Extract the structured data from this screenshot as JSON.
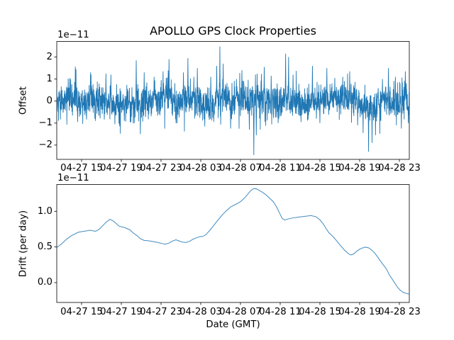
{
  "figure": {
    "title": "APOLLO GPS Clock Properties",
    "xlabel": "Date (GMT)",
    "background": "#ffffff",
    "line_color": "#1f77b4",
    "axes_color": "#000000"
  },
  "chart_data": [
    {
      "type": "line",
      "title": "APOLLO GPS Clock Properties",
      "ylabel": "Offset",
      "offset_text": "1e−11",
      "scale_factor": 1e-11,
      "xlim_hours": [
        12.5,
        48.0
      ],
      "ylim": [
        -2.7,
        2.73
      ],
      "grid": false,
      "legend": "none",
      "x_ticks": [
        {
          "hour": 15,
          "label": "04-27 15"
        },
        {
          "hour": 19,
          "label": "04-27 19"
        },
        {
          "hour": 23,
          "label": "04-27 23"
        },
        {
          "hour": 27,
          "label": "04-28 03"
        },
        {
          "hour": 31,
          "label": "04-28 07"
        },
        {
          "hour": 35,
          "label": "04-28 11"
        },
        {
          "hour": 39,
          "label": "04-28 15"
        },
        {
          "hour": 43,
          "label": "04-28 19"
        },
        {
          "hour": 47,
          "label": "04-28 23"
        }
      ],
      "y_ticks": [
        {
          "value": -2,
          "label": "−2"
        },
        {
          "value": -1,
          "label": "−1"
        },
        {
          "value": 0,
          "label": "0"
        },
        {
          "value": 1,
          "label": "1"
        },
        {
          "value": 2,
          "label": "2"
        }
      ],
      "series": [
        {
          "name": "offset",
          "kind": "noise",
          "n": 2130,
          "seed": 20210427,
          "base_std": 0.36,
          "tail_prob": 0.1,
          "tail_std": 0.45,
          "wander_sines": [
            [
              0.1,
              8.5,
              0.0
            ],
            [
              0.06,
              3.2,
              0.8
            ]
          ],
          "wander_bumps": [
            [
              44.1,
              0.8,
              -0.32
            ],
            [
              29.1,
              1.2,
              0.1
            ]
          ],
          "spikes": [
            [
              13.9,
              1.0
            ],
            [
              14.43,
              1.45
            ],
            [
              14.6,
              -0.95
            ],
            [
              15.9,
              1.3
            ],
            [
              16.4,
              -0.9
            ],
            [
              17.45,
              1.25
            ],
            [
              17.95,
              1.2
            ],
            [
              18.35,
              -1.05
            ],
            [
              19.3,
              -0.9
            ],
            [
              20.5,
              1.85
            ],
            [
              20.92,
              -1.5
            ],
            [
              21.3,
              1.3
            ],
            [
              22.3,
              1.1
            ],
            [
              23.2,
              1.35
            ],
            [
              23.8,
              1.9
            ],
            [
              24.5,
              -1.0
            ],
            [
              25.25,
              1.3
            ],
            [
              25.7,
              1.95
            ],
            [
              26.3,
              1.1
            ],
            [
              26.65,
              1.5
            ],
            [
              27.4,
              -1.15
            ],
            [
              28.0,
              1.1
            ],
            [
              28.6,
              1.6
            ],
            [
              28.92,
              2.48
            ],
            [
              29.25,
              1.7
            ],
            [
              30.0,
              -1.25
            ],
            [
              30.6,
              1.0
            ],
            [
              31.15,
              1.4
            ],
            [
              31.9,
              -1.3
            ],
            [
              32.35,
              -2.45
            ],
            [
              32.6,
              -1.55
            ],
            [
              33.4,
              1.55
            ],
            [
              34.1,
              1.15
            ],
            [
              34.8,
              -1.0
            ],
            [
              35.55,
              2.15
            ],
            [
              35.85,
              2.0
            ],
            [
              36.3,
              1.2
            ],
            [
              37.1,
              -0.95
            ],
            [
              38.25,
              1.6
            ],
            [
              39.0,
              -1.0
            ],
            [
              39.7,
              1.5
            ],
            [
              40.5,
              1.05
            ],
            [
              41.3,
              1.1
            ],
            [
              42.0,
              1.35
            ],
            [
              42.8,
              -1.1
            ],
            [
              43.35,
              -1.45
            ],
            [
              43.9,
              -2.3
            ],
            [
              44.25,
              -1.9
            ],
            [
              44.6,
              -1.55
            ],
            [
              45.3,
              1.0
            ],
            [
              45.9,
              1.5
            ],
            [
              46.6,
              1.1
            ],
            [
              47.2,
              -1.25
            ],
            [
              47.6,
              1.35
            ],
            [
              47.9,
              -1.0
            ]
          ]
        }
      ]
    },
    {
      "type": "line",
      "ylabel": "Drift (per day)",
      "xlabel": "Date (GMT)",
      "offset_text": "1e−11",
      "scale_factor": 1e-11,
      "xlim_hours": [
        12.5,
        48.0
      ],
      "ylim": [
        -0.28,
        1.37
      ],
      "grid": false,
      "legend": "none",
      "x_ticks": [
        {
          "hour": 15,
          "label": "04-27 15"
        },
        {
          "hour": 19,
          "label": "04-27 19"
        },
        {
          "hour": 23,
          "label": "04-27 23"
        },
        {
          "hour": 27,
          "label": "04-28 03"
        },
        {
          "hour": 31,
          "label": "04-28 07"
        },
        {
          "hour": 35,
          "label": "04-28 11"
        },
        {
          "hour": 39,
          "label": "04-28 15"
        },
        {
          "hour": 43,
          "label": "04-28 19"
        },
        {
          "hour": 47,
          "label": "04-28 23"
        }
      ],
      "y_ticks": [
        {
          "value": 0.0,
          "label": "0.0"
        },
        {
          "value": 0.5,
          "label": "0.5"
        },
        {
          "value": 1.0,
          "label": "1.0"
        }
      ],
      "series": [
        {
          "name": "drift",
          "kind": "points",
          "points": [
            [
              12.5,
              0.49
            ],
            [
              13.0,
              0.545
            ],
            [
              13.5,
              0.61
            ],
            [
              14.0,
              0.66
            ],
            [
              14.64,
              0.705
            ],
            [
              15.0,
              0.715
            ],
            [
              15.36,
              0.722
            ],
            [
              15.86,
              0.735
            ],
            [
              16.2,
              0.725
            ],
            [
              16.43,
              0.72
            ],
            [
              16.79,
              0.75
            ],
            [
              17.14,
              0.8
            ],
            [
              17.5,
              0.85
            ],
            [
              17.86,
              0.888
            ],
            [
              18.21,
              0.862
            ],
            [
              18.43,
              0.835
            ],
            [
              18.79,
              0.79
            ],
            [
              19.14,
              0.78
            ],
            [
              19.5,
              0.762
            ],
            [
              19.86,
              0.74
            ],
            [
              20.21,
              0.695
            ],
            [
              20.57,
              0.66
            ],
            [
              20.93,
              0.615
            ],
            [
              21.29,
              0.592
            ],
            [
              21.79,
              0.586
            ],
            [
              22.29,
              0.574
            ],
            [
              22.71,
              0.562
            ],
            [
              23.07,
              0.548
            ],
            [
              23.43,
              0.54
            ],
            [
              23.79,
              0.553
            ],
            [
              24.07,
              0.578
            ],
            [
              24.29,
              0.59
            ],
            [
              24.5,
              0.6
            ],
            [
              24.79,
              0.586
            ],
            [
              25.14,
              0.568
            ],
            [
              25.5,
              0.562
            ],
            [
              25.86,
              0.578
            ],
            [
              26.2,
              0.607
            ],
            [
              26.5,
              0.625
            ],
            [
              26.8,
              0.64
            ],
            [
              27.0,
              0.648
            ],
            [
              27.15,
              0.644
            ],
            [
              27.5,
              0.67
            ],
            [
              27.9,
              0.73
            ],
            [
              28.3,
              0.8
            ],
            [
              28.6,
              0.855
            ],
            [
              28.9,
              0.905
            ],
            [
              29.2,
              0.955
            ],
            [
              29.6,
              1.01
            ],
            [
              30.0,
              1.06
            ],
            [
              30.4,
              1.09
            ],
            [
              30.7,
              1.11
            ],
            [
              31.0,
              1.135
            ],
            [
              31.4,
              1.185
            ],
            [
              31.7,
              1.235
            ],
            [
              32.0,
              1.285
            ],
            [
              32.2,
              1.308
            ],
            [
              32.4,
              1.32
            ],
            [
              32.65,
              1.312
            ],
            [
              32.9,
              1.292
            ],
            [
              33.2,
              1.268
            ],
            [
              33.6,
              1.228
            ],
            [
              33.9,
              1.188
            ],
            [
              34.3,
              1.135
            ],
            [
              34.6,
              1.07
            ],
            [
              34.9,
              0.985
            ],
            [
              35.2,
              0.9
            ],
            [
              35.45,
              0.878
            ],
            [
              35.8,
              0.893
            ],
            [
              36.3,
              0.908
            ],
            [
              36.8,
              0.917
            ],
            [
              37.4,
              0.928
            ],
            [
              38.1,
              0.94
            ],
            [
              38.6,
              0.924
            ],
            [
              39.0,
              0.88
            ],
            [
              39.3,
              0.83
            ],
            [
              39.6,
              0.762
            ],
            [
              39.9,
              0.7
            ],
            [
              40.3,
              0.648
            ],
            [
              40.6,
              0.6
            ],
            [
              40.9,
              0.548
            ],
            [
              41.2,
              0.5
            ],
            [
              41.5,
              0.452
            ],
            [
              41.9,
              0.402
            ],
            [
              42.1,
              0.388
            ],
            [
              42.4,
              0.402
            ],
            [
              42.7,
              0.44
            ],
            [
              43.0,
              0.468
            ],
            [
              43.3,
              0.487
            ],
            [
              43.6,
              0.497
            ],
            [
              43.9,
              0.488
            ],
            [
              44.2,
              0.458
            ],
            [
              44.5,
              0.418
            ],
            [
              44.8,
              0.362
            ],
            [
              45.1,
              0.302
            ],
            [
              45.4,
              0.245
            ],
            [
              45.7,
              0.19
            ],
            [
              46.0,
              0.105
            ],
            [
              46.25,
              0.055
            ],
            [
              46.5,
              0.002
            ],
            [
              46.8,
              -0.063
            ],
            [
              47.1,
              -0.108
            ],
            [
              47.4,
              -0.138
            ],
            [
              47.7,
              -0.152
            ],
            [
              48.0,
              -0.16
            ]
          ]
        }
      ]
    }
  ]
}
